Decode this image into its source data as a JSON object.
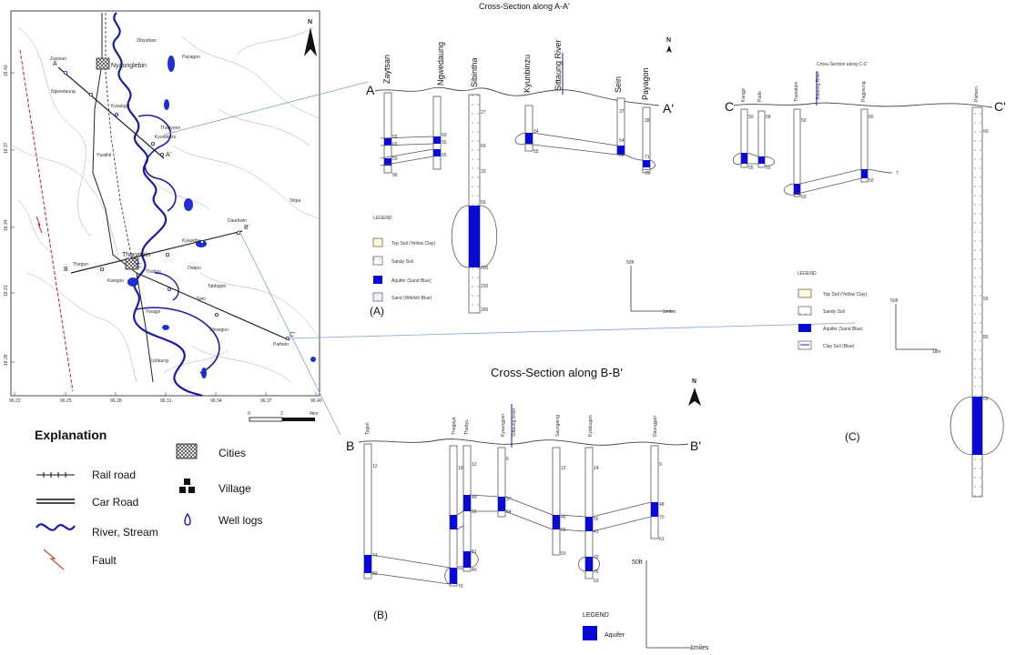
{
  "map": {
    "north": "N",
    "lat_ticks": [
      "18.40",
      "18.37",
      "18.34",
      "18.31",
      "18.28"
    ],
    "lon_ticks": [
      "96.22",
      "96.25",
      "96.28",
      "96.31",
      "96.34",
      "96.37",
      "96.40"
    ],
    "scale": {
      "start": "0",
      "mid": "2",
      "end": "4km"
    },
    "cities": [
      {
        "name": "Nyaunglebin",
        "label": "Nyaunglebin"
      },
      {
        "name": "Thanatpin",
        "label": "Thanatpin"
      }
    ],
    "section_ends": [
      {
        "id": "A-start",
        "label": "A"
      },
      {
        "id": "A-end",
        "label": "A'"
      },
      {
        "id": "B-start",
        "label": "B"
      },
      {
        "id": "B-end",
        "label": "B'"
      },
      {
        "id": "C-start",
        "label": "C"
      },
      {
        "id": "C-end",
        "label": "C'"
      }
    ],
    "villages": [
      "Zaytsan",
      "Zibyutkan",
      "Thagyonn",
      "Kyaukgyi",
      "Ngwedaung",
      "Kyunbinzu",
      "Payagon",
      "Ywathit",
      "Daurkwin",
      "Thegon",
      "Tetpa",
      "Kyaukthu",
      "Thabyu",
      "Tabbigon",
      "Oakpo",
      "Shwegun",
      "Sein",
      "Pathein",
      "Kwegon",
      "Kyidaung",
      "Ywagyi"
    ]
  },
  "explanation": {
    "title": "Explanation",
    "items": [
      {
        "id": "rail",
        "label": "Rail road"
      },
      {
        "id": "car",
        "label": "Car Road"
      },
      {
        "id": "river",
        "label": "River, Stream"
      },
      {
        "id": "fault",
        "label": "Fault"
      },
      {
        "id": "cities",
        "label": "Cities"
      },
      {
        "id": "village",
        "label": "Village"
      },
      {
        "id": "well",
        "label": "Well logs"
      }
    ]
  },
  "section_a": {
    "title": "Cross-Section along A-A'",
    "panel_label": "(A)",
    "end_left": "A",
    "end_right": "A'",
    "north": "N",
    "wells": [
      "Zaytsan",
      "Ngwedaung",
      "Sibintha",
      "Kyunbinzu",
      "Sittaung River",
      "Sein",
      "Payagon"
    ],
    "depth_labels": [
      "55",
      "65",
      "59",
      "90",
      "60",
      "55",
      "65",
      "27",
      "69",
      "33",
      "56",
      "265",
      "200",
      "230",
      "34",
      "55",
      "37",
      "54",
      "66",
      "28",
      "71",
      "75"
    ],
    "legend": {
      "title": "LEGEND",
      "items": [
        "Top Soil (Yellow Clay)",
        "Sandy Soil",
        "Aquifer (Sand Blue)",
        "Sand (Whitish Blue)"
      ]
    },
    "scale": {
      "vertical": "50ft",
      "horizontal": "1miles"
    }
  },
  "section_b": {
    "title": "Cross-Section along B-B'",
    "panel_label": "(B)",
    "end_left": "B",
    "end_right": "B'",
    "north": "N",
    "wells": [
      "Togon",
      "Thagaya",
      "Thabyu",
      "Kyaungyon",
      "Sittaung River",
      "Saungaing",
      "Kyatsugon",
      "Daunggon"
    ],
    "depth_labels": [
      "12",
      "19",
      "12",
      "6",
      "13",
      "14",
      "9",
      "74",
      "82",
      "49",
      "55",
      "37",
      "54",
      "45",
      "66",
      "55",
      "41",
      "48",
      "70",
      "72",
      "76",
      "82",
      "70",
      "81",
      "61",
      "40",
      "53",
      "63"
    ],
    "legend": {
      "title": "LEGEND",
      "items": [
        "Aquifer"
      ]
    },
    "scale": {
      "vertical": "50ft",
      "horizontal": "1miles"
    }
  },
  "section_c": {
    "title": "Cross-Section along C-C'",
    "panel_label": "(C)",
    "end_left": "C",
    "end_right": "C'",
    "wells": [
      "Kangyi",
      "Pado",
      "Thanatpin",
      "Sittaung River",
      "Pagyaung",
      "Pathein"
    ],
    "depth_labels": [
      "50",
      "55",
      "58",
      "50",
      "50",
      "50",
      "60",
      "50",
      "60",
      "55",
      "80",
      "65"
    ],
    "legend": {
      "title": "LEGEND",
      "items": [
        "Top Soil (Yellow Clay)",
        "Sandy Soil",
        "Aquifer (Sand Blue)",
        "Clay Soil (Blue)"
      ]
    },
    "scale": {
      "vertical": "50ft",
      "horizontal": "1km"
    }
  },
  "colors": {
    "aquifer": "#0a0ad6",
    "river": "#1a1aa8",
    "fault": "#d11a1a",
    "link": "#7fa3d6"
  }
}
